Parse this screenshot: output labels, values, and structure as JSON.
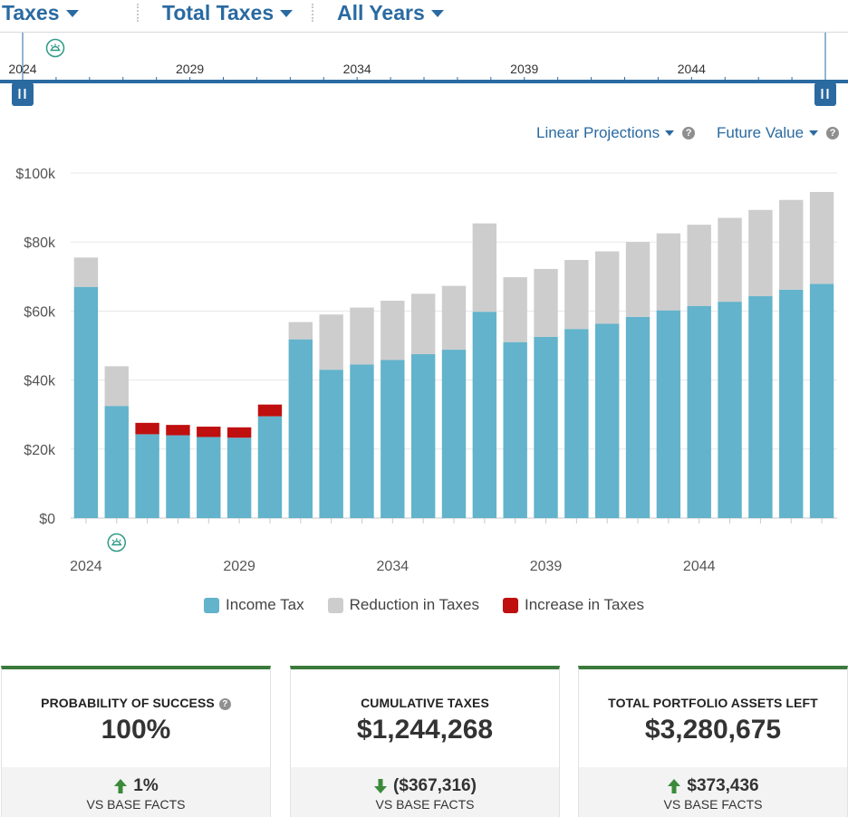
{
  "header": {
    "view_label": "Taxes",
    "metric_label": "Total Taxes",
    "range_label": "All Years"
  },
  "timeline": {
    "years": [
      "2024",
      "2029",
      "2034",
      "2039",
      "2044"
    ],
    "start_year": 2024,
    "end_year": 2048,
    "marker_icon": "sunrise-icon",
    "accent": "#2a6aa1"
  },
  "controls": {
    "projection_label": "Linear Projections",
    "value_label": "Future Value"
  },
  "chart_data": {
    "type": "bar",
    "stacked": true,
    "title": "",
    "xlabel": "",
    "ylabel": "",
    "ylim": [
      0,
      100000
    ],
    "y_ticks": [
      0,
      20000,
      40000,
      60000,
      80000,
      100000
    ],
    "y_tick_labels": [
      "$0",
      "$20k",
      "$40k",
      "$60k",
      "$80k",
      "$100k"
    ],
    "x_tick_labels": [
      "2024",
      "2029",
      "2034",
      "2039",
      "2044"
    ],
    "categories": [
      "2024",
      "2025",
      "2026",
      "2027",
      "2028",
      "2029",
      "2030",
      "2031",
      "2032",
      "2033",
      "2034",
      "2035",
      "2036",
      "2037",
      "2038",
      "2039",
      "2040",
      "2041",
      "2042",
      "2043",
      "2044",
      "2045",
      "2046",
      "2047",
      "2048"
    ],
    "series": [
      {
        "name": "Income Tax",
        "color": "#62b3cb",
        "values": [
          67000,
          32500,
          24300,
          24000,
          23500,
          23300,
          29500,
          51800,
          43000,
          44500,
          45800,
          47500,
          48800,
          59800,
          51000,
          52500,
          54800,
          56300,
          58300,
          60200,
          61500,
          62700,
          64300,
          66200,
          67900
        ]
      },
      {
        "name": "Reduction in Taxes",
        "color": "#cdcdcd",
        "values": [
          8500,
          11500,
          0,
          0,
          0,
          0,
          0,
          5000,
          16000,
          16500,
          17200,
          17500,
          18500,
          25600,
          18800,
          19700,
          20000,
          21000,
          21700,
          22300,
          23500,
          24300,
          25000,
          26000,
          26600
        ]
      },
      {
        "name": "Increase in Taxes",
        "color": "#c00f0f",
        "values": [
          0,
          0,
          3300,
          3000,
          3000,
          3000,
          3400,
          0,
          0,
          0,
          0,
          0,
          0,
          0,
          0,
          0,
          0,
          0,
          0,
          0,
          0,
          0,
          0,
          0,
          0
        ]
      }
    ],
    "marker_year": "2025",
    "legend_position": "bottom"
  },
  "legend": [
    {
      "label": "Income Tax",
      "color": "#62b3cb"
    },
    {
      "label": "Reduction in Taxes",
      "color": "#cdcdcd"
    },
    {
      "label": "Increase in Taxes",
      "color": "#c00f0f"
    }
  ],
  "cards": [
    {
      "label": "PROBABILITY OF SUCCESS",
      "value": "100%",
      "delta": "1%",
      "direction": "up",
      "vs": "VS BASE FACTS"
    },
    {
      "label": "CUMULATIVE TAXES",
      "value": "$1,244,268",
      "delta": "($367,316)",
      "direction": "down",
      "vs": "VS BASE FACTS"
    },
    {
      "label": "TOTAL PORTFOLIO ASSETS LEFT",
      "value": "$3,280,675",
      "delta": "$373,436",
      "direction": "up",
      "vs": "VS BASE FACTS"
    }
  ]
}
